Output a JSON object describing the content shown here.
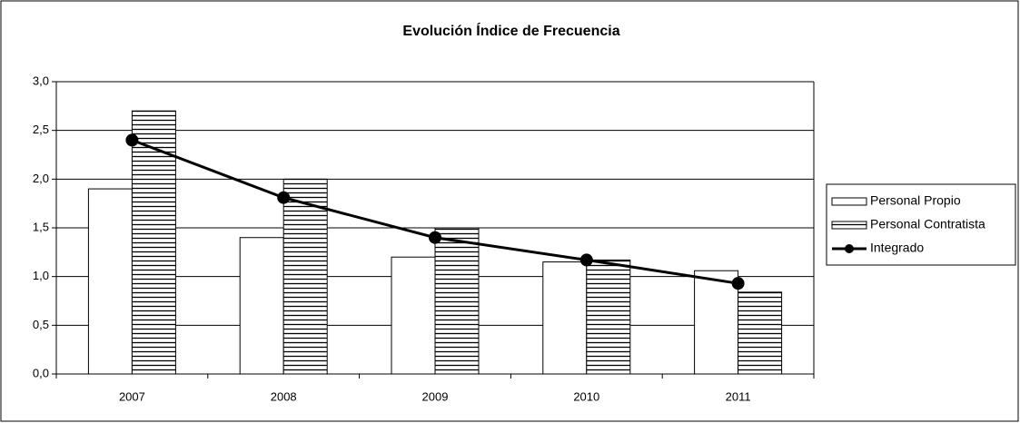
{
  "chart_data": {
    "type": "bar",
    "title": "Evolución Índice de Frecuencia",
    "categories": [
      "2007",
      "2008",
      "2009",
      "2010",
      "2011"
    ],
    "series": [
      {
        "name": "Personal Propio",
        "type": "bar",
        "color": "#ffffff",
        "hatch": false,
        "values": [
          1.9,
          1.4,
          1.2,
          1.15,
          1.06
        ]
      },
      {
        "name": "Personal Contratista",
        "type": "bar",
        "color": "#000000",
        "hatch": true,
        "values": [
          2.7,
          2.0,
          1.5,
          1.17,
          0.84
        ]
      },
      {
        "name": "Integrado",
        "type": "line",
        "color": "#000000",
        "values": [
          2.4,
          1.81,
          1.4,
          1.17,
          0.93
        ]
      }
    ],
    "ylim": [
      0,
      3
    ],
    "yticks": [
      {
        "value": 0,
        "label": "0,0"
      },
      {
        "value": 0.5,
        "label": "0,5"
      },
      {
        "value": 1,
        "label": "1,0"
      },
      {
        "value": 1.5,
        "label": "1,5"
      },
      {
        "value": 2,
        "label": "2,0"
      },
      {
        "value": 2.5,
        "label": "2,5"
      },
      {
        "value": 3,
        "label": "3,0"
      }
    ],
    "grid": true,
    "legend": "right"
  }
}
